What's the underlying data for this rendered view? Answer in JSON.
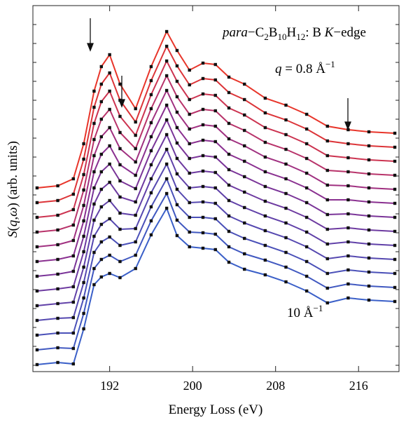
{
  "chart_data": {
    "type": "line",
    "title": [
      "para",
      "−C",
      "2",
      "B",
      "10",
      "H",
      "12",
      ": B ",
      "K",
      "−edge"
    ],
    "x_label": "Energy Loss (eV)",
    "y_label": [
      "S",
      "(",
      "q",
      ",",
      "ω",
      ") (arb. units)"
    ],
    "annotations": [
      [
        "q",
        " = 0.8 Å",
        "−1"
      ],
      [
        "10 Å",
        "−1"
      ]
    ],
    "xlim": [
      184.6,
      219.9
    ],
    "xticks": [
      192,
      200,
      208,
      216
    ],
    "ylim": [
      0,
      522
    ],
    "marker_color": "#111111",
    "x": [
      185,
      187,
      188.5,
      189.5,
      190.5,
      191.2,
      192,
      193,
      194.5,
      196,
      197.5,
      198.5,
      199.7,
      201,
      202.2,
      203.5,
      205,
      207,
      209,
      211,
      213,
      215,
      217,
      219.5
    ],
    "series": [
      {
        "color": "#e8352a",
        "values": [
          262,
          265,
          275,
          325,
          400,
          435,
          452,
          410,
          375,
          435,
          485,
          458,
          430,
          440,
          438,
          420,
          410,
          390,
          380,
          367,
          350,
          345,
          342,
          340
        ]
      },
      {
        "color": "#dc3438",
        "values": [
          241,
          244,
          253,
          303,
          377,
          410,
          426,
          387,
          356,
          415,
          464,
          436,
          409,
          418,
          416,
          398,
          388,
          369,
          359,
          346,
          329,
          325,
          322,
          320
        ]
      },
      {
        "color": "#cc3350",
        "values": [
          220,
          223,
          231,
          281,
          354,
          385,
          400,
          364,
          337,
          395,
          443,
          414,
          388,
          396,
          394,
          376,
          366,
          348,
          338,
          325,
          308,
          305,
          302,
          300
        ]
      },
      {
        "color": "#b8336a",
        "values": [
          199,
          202,
          209,
          259,
          331,
          360,
          374,
          341,
          318,
          375,
          422,
          392,
          367,
          374,
          372,
          354,
          344,
          327,
          317,
          304,
          287,
          285,
          282,
          280
        ]
      },
      {
        "color": "#a03080",
        "values": [
          178,
          181,
          187,
          237,
          308,
          335,
          348,
          318,
          299,
          355,
          401,
          370,
          346,
          352,
          350,
          332,
          322,
          306,
          296,
          283,
          266,
          265,
          262,
          260
        ]
      },
      {
        "color": "#8a3090",
        "values": [
          157,
          160,
          165,
          215,
          285,
          310,
          322,
          295,
          280,
          335,
          380,
          348,
          325,
          330,
          328,
          310,
          300,
          285,
          275,
          262,
          245,
          245,
          242,
          240
        ]
      },
      {
        "color": "#7a3498",
        "values": [
          136,
          139,
          143,
          193,
          262,
          285,
          296,
          272,
          261,
          315,
          359,
          326,
          304,
          308,
          306,
          288,
          278,
          264,
          254,
          241,
          224,
          225,
          222,
          220
        ]
      },
      {
        "color": "#6d3aa0",
        "values": [
          115,
          118,
          121,
          171,
          239,
          260,
          270,
          249,
          242,
          295,
          338,
          304,
          283,
          286,
          284,
          266,
          256,
          243,
          233,
          220,
          203,
          205,
          202,
          200
        ]
      },
      {
        "color": "#6040a8",
        "values": [
          94,
          97,
          99,
          149,
          216,
          235,
          244,
          226,
          223,
          275,
          317,
          282,
          262,
          264,
          262,
          244,
          234,
          222,
          212,
          199,
          182,
          185,
          182,
          180
        ]
      },
      {
        "color": "#5548b0",
        "values": [
          73,
          76,
          77,
          127,
          193,
          210,
          218,
          203,
          204,
          255,
          296,
          260,
          241,
          242,
          240,
          222,
          212,
          201,
          191,
          178,
          161,
          165,
          162,
          160
        ]
      },
      {
        "color": "#4a50b8",
        "values": [
          52,
          55,
          55,
          105,
          170,
          185,
          192,
          180,
          185,
          235,
          275,
          238,
          220,
          220,
          218,
          200,
          190,
          180,
          170,
          157,
          140,
          145,
          142,
          140
        ]
      },
      {
        "color": "#4058c0",
        "values": [
          31,
          34,
          33,
          83,
          147,
          160,
          166,
          157,
          166,
          215,
          254,
          216,
          199,
          198,
          196,
          178,
          168,
          159,
          149,
          136,
          119,
          125,
          122,
          120
        ]
      },
      {
        "color": "#3a5fc8",
        "values": [
          10,
          13,
          11,
          61,
          124,
          135,
          140,
          134,
          147,
          195,
          233,
          194,
          178,
          176,
          174,
          156,
          146,
          138,
          128,
          115,
          98,
          105,
          102,
          100
        ]
      }
    ]
  }
}
